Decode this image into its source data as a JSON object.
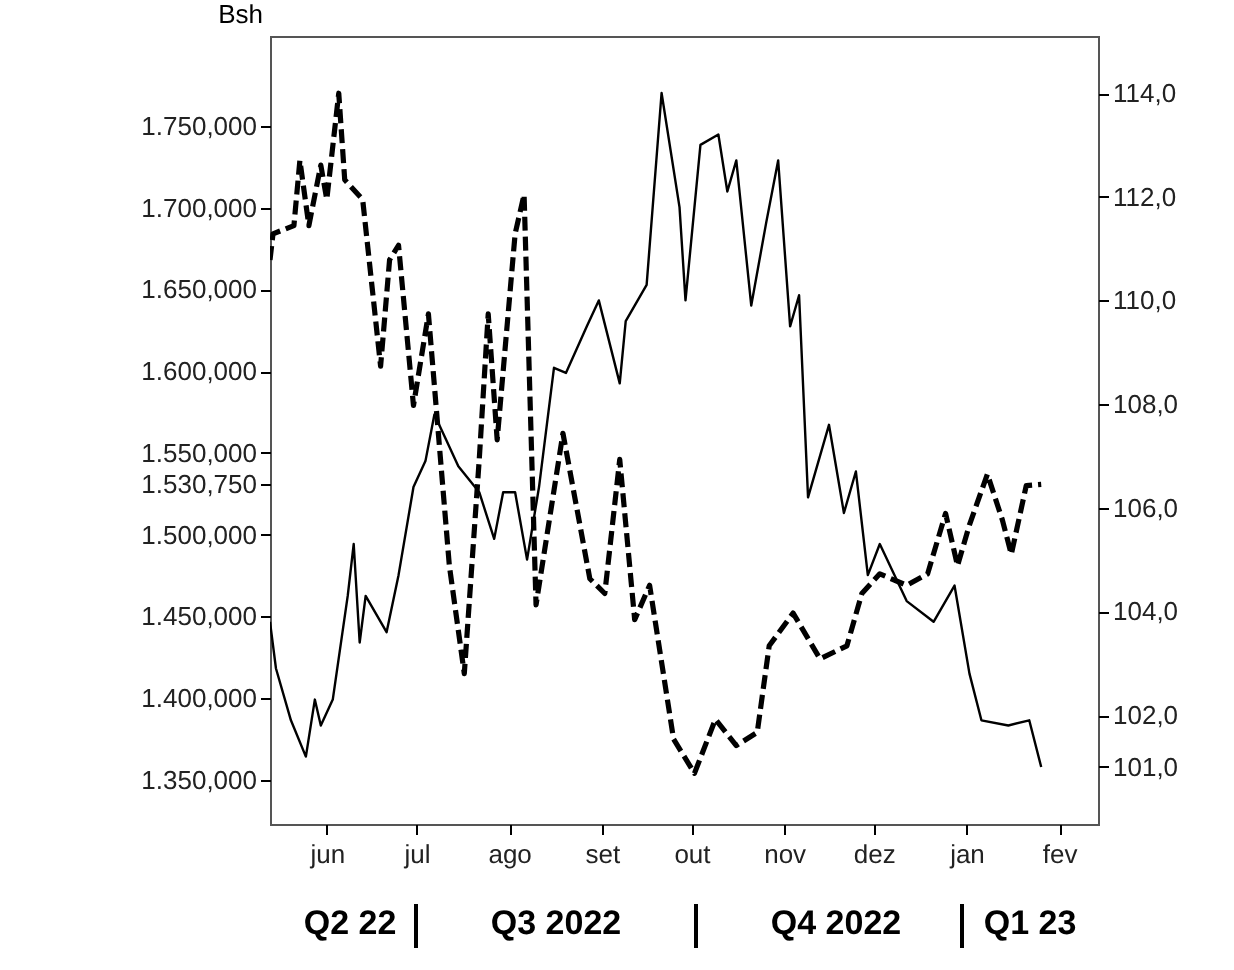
{
  "chart_data": {
    "type": "line",
    "ylabel": "Bsh",
    "annotations": [
      "Q2 22",
      "Q3 2022",
      "Q4 2022",
      "Q1 23"
    ],
    "xlim": [
      "2022-05-13",
      "2023-02-14"
    ],
    "xticks": [
      {
        "value": "2022-06-01",
        "label": "jun"
      },
      {
        "value": "2022-07-01",
        "label": "jul"
      },
      {
        "value": "2022-08-01",
        "label": "ago"
      },
      {
        "value": "2022-09-01",
        "label": "set"
      },
      {
        "value": "2022-10-01",
        "label": "out"
      },
      {
        "value": "2022-11-01",
        "label": "nov"
      },
      {
        "value": "2022-12-01",
        "label": "dez"
      },
      {
        "value": "2023-01-01",
        "label": "jan"
      },
      {
        "value": "2023-02-01",
        "label": "fev"
      }
    ],
    "ylim": [
      1323,
      1805
    ],
    "yticks": [
      {
        "value": 1350,
        "label": "1.350,000"
      },
      {
        "value": 1400,
        "label": "1.400,000"
      },
      {
        "value": 1450,
        "label": "1.450,000"
      },
      {
        "value": 1500,
        "label": "1.500,000"
      },
      {
        "value": 1530.75,
        "label": "1.530,750"
      },
      {
        "value": 1550,
        "label": "1.550,000"
      },
      {
        "value": 1600,
        "label": "1.600,000"
      },
      {
        "value": 1650,
        "label": "1.650,000"
      },
      {
        "value": 1700,
        "label": "1.700,000"
      },
      {
        "value": 1750,
        "label": "1.750,000"
      }
    ],
    "y2lim": [
      99.9,
      115.1
    ],
    "y2ticks": [
      {
        "value": 101,
        "label": "101,0"
      },
      {
        "value": 102,
        "label": "102,0"
      },
      {
        "value": 104,
        "label": "104,0"
      },
      {
        "value": 106,
        "label": "106,0"
      },
      {
        "value": 108,
        "label": "108,0"
      },
      {
        "value": 110,
        "label": "110,0"
      },
      {
        "value": 112,
        "label": "112,0"
      },
      {
        "value": 114,
        "label": "114,0"
      }
    ],
    "series": [
      {
        "color": "#000000",
        "line_style": "dashed",
        "x": [
          "2022-05-13",
          "2022-05-14",
          "2022-05-21",
          "2022-05-23",
          "2022-05-26",
          "2022-05-30",
          "2022-06-01",
          "2022-06-05",
          "2022-06-07",
          "2022-06-13",
          "2022-06-19",
          "2022-06-22",
          "2022-06-25",
          "2022-06-30",
          "2022-07-05",
          "2022-07-12",
          "2022-07-17",
          "2022-07-22",
          "2022-07-25",
          "2022-07-28",
          "2022-08-03",
          "2022-08-06",
          "2022-08-10",
          "2022-08-19",
          "2022-08-28",
          "2022-09-02",
          "2022-09-07",
          "2022-09-12",
          "2022-09-17",
          "2022-09-25",
          "2022-10-02",
          "2022-10-09",
          "2022-10-16",
          "2022-10-23",
          "2022-10-27",
          "2022-11-04",
          "2022-11-13",
          "2022-11-22",
          "2022-11-27",
          "2022-12-03",
          "2022-12-12",
          "2022-12-19",
          "2022-12-25",
          "2022-12-29",
          "2023-01-02",
          "2023-01-08",
          "2023-01-13",
          "2023-01-16",
          "2023-01-21",
          "2023-01-26"
        ],
        "values": [
          1668,
          1684,
          1689,
          1729,
          1689,
          1726,
          1705,
          1770,
          1717,
          1705,
          1603,
          1668,
          1677,
          1579,
          1635,
          1481,
          1415,
          1546,
          1635,
          1558,
          1684,
          1708,
          1457,
          1562,
          1473,
          1464,
          1546,
          1448,
          1469,
          1375,
          1354,
          1387,
          1371,
          1379,
          1432,
          1452,
          1424,
          1432,
          1464,
          1476,
          1469,
          1476,
          1513,
          1481,
          1506,
          1537,
          1509,
          1488,
          1530,
          1530.75
        ]
      },
      {
        "color": "#000000",
        "line_style": "solid",
        "axis": "y2",
        "x": [
          "2022-05-13",
          "2022-05-15",
          "2022-05-20",
          "2022-05-25",
          "2022-05-28",
          "2022-05-30",
          "2022-06-03",
          "2022-06-08",
          "2022-06-10",
          "2022-06-12",
          "2022-06-14",
          "2022-06-21",
          "2022-06-25",
          "2022-06-30",
          "2022-07-04",
          "2022-07-07",
          "2022-07-11",
          "2022-07-15",
          "2022-07-22",
          "2022-07-27",
          "2022-07-30",
          "2022-08-03",
          "2022-08-07",
          "2022-08-11",
          "2022-08-16",
          "2022-08-20",
          "2022-08-27",
          "2022-08-31",
          "2022-09-07",
          "2022-09-09",
          "2022-09-16",
          "2022-09-21",
          "2022-09-27",
          "2022-09-29",
          "2022-10-04",
          "2022-10-10",
          "2022-10-13",
          "2022-10-16",
          "2022-10-21",
          "2022-10-26",
          "2022-10-30",
          "2022-11-03",
          "2022-11-06",
          "2022-11-09",
          "2022-11-16",
          "2022-11-21",
          "2022-11-25",
          "2022-11-29",
          "2022-12-03",
          "2022-12-12",
          "2022-12-21",
          "2022-12-28",
          "2023-01-02",
          "2023-01-06",
          "2023-01-15",
          "2023-01-22",
          "2023-01-26"
        ],
        "values": [
          103.8,
          102.9,
          101.9,
          101.2,
          102.3,
          101.8,
          102.3,
          104.3,
          105.3,
          103.4,
          104.3,
          103.6,
          104.7,
          106.4,
          106.9,
          107.8,
          107.3,
          106.8,
          106.3,
          105.4,
          106.3,
          106.3,
          105.0,
          106.4,
          108.7,
          108.6,
          109.5,
          110.0,
          108.4,
          109.6,
          110.3,
          114.0,
          111.8,
          110.0,
          113.0,
          113.2,
          112.1,
          112.7,
          109.9,
          111.5,
          112.7,
          109.5,
          110.1,
          106.2,
          107.6,
          105.9,
          106.7,
          104.7,
          105.3,
          104.2,
          103.8,
          104.5,
          102.8,
          101.9,
          101.8,
          101.9,
          101.0
        ]
      }
    ]
  }
}
